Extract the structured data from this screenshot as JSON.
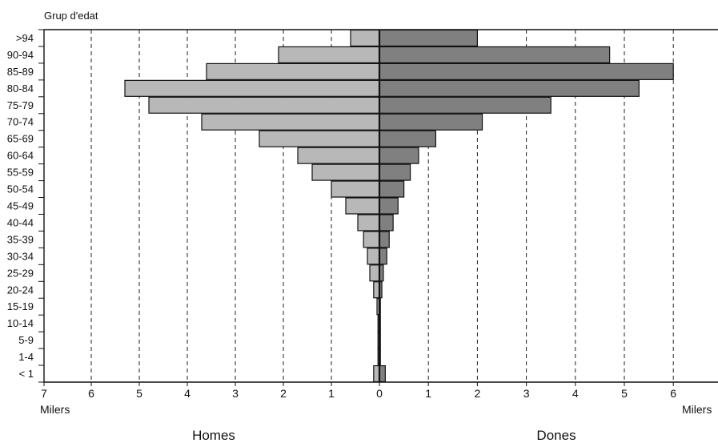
{
  "chart_data": {
    "type": "bar",
    "orientation": "horizontal-pyramid",
    "y_title": "Grup d'edat",
    "categories": [
      ">94",
      "90-94",
      "85-89",
      "80-84",
      "75-79",
      "70-74",
      "65-69",
      "60-64",
      "55-59",
      "50-54",
      "45-49",
      "40-44",
      "35-39",
      "30-34",
      "25-29",
      "20-24",
      "15-19",
      "10-14",
      "5-9",
      "1-4",
      "< 1"
    ],
    "series": [
      {
        "name": "Homes",
        "side": "left",
        "color": "#b8b8b8",
        "values": [
          0.6,
          2.1,
          3.6,
          5.3,
          4.8,
          3.7,
          2.5,
          1.7,
          1.4,
          1.0,
          0.7,
          0.45,
          0.33,
          0.25,
          0.2,
          0.12,
          0.05,
          0.03,
          0.03,
          0.03,
          0.12
        ]
      },
      {
        "name": "Dones",
        "side": "right",
        "color": "#808080",
        "values": [
          2.0,
          4.7,
          6.0,
          5.3,
          3.5,
          2.1,
          1.15,
          0.8,
          0.63,
          0.5,
          0.38,
          0.28,
          0.2,
          0.15,
          0.08,
          0.05,
          0.02,
          0.02,
          0.02,
          0.02,
          0.12
        ]
      }
    ],
    "x_ticks_left": [
      "7",
      "6",
      "5",
      "4",
      "3",
      "2",
      "1",
      "0"
    ],
    "x_ticks_right": [
      "1",
      "2",
      "3",
      "4",
      "5",
      "6",
      "7"
    ],
    "x_unit_left": "Milers",
    "x_unit_right": "Milers",
    "xlim": [
      -7,
      7
    ],
    "grid": "vertical-dashed",
    "left_label": "Homes",
    "right_label": "Dones"
  }
}
